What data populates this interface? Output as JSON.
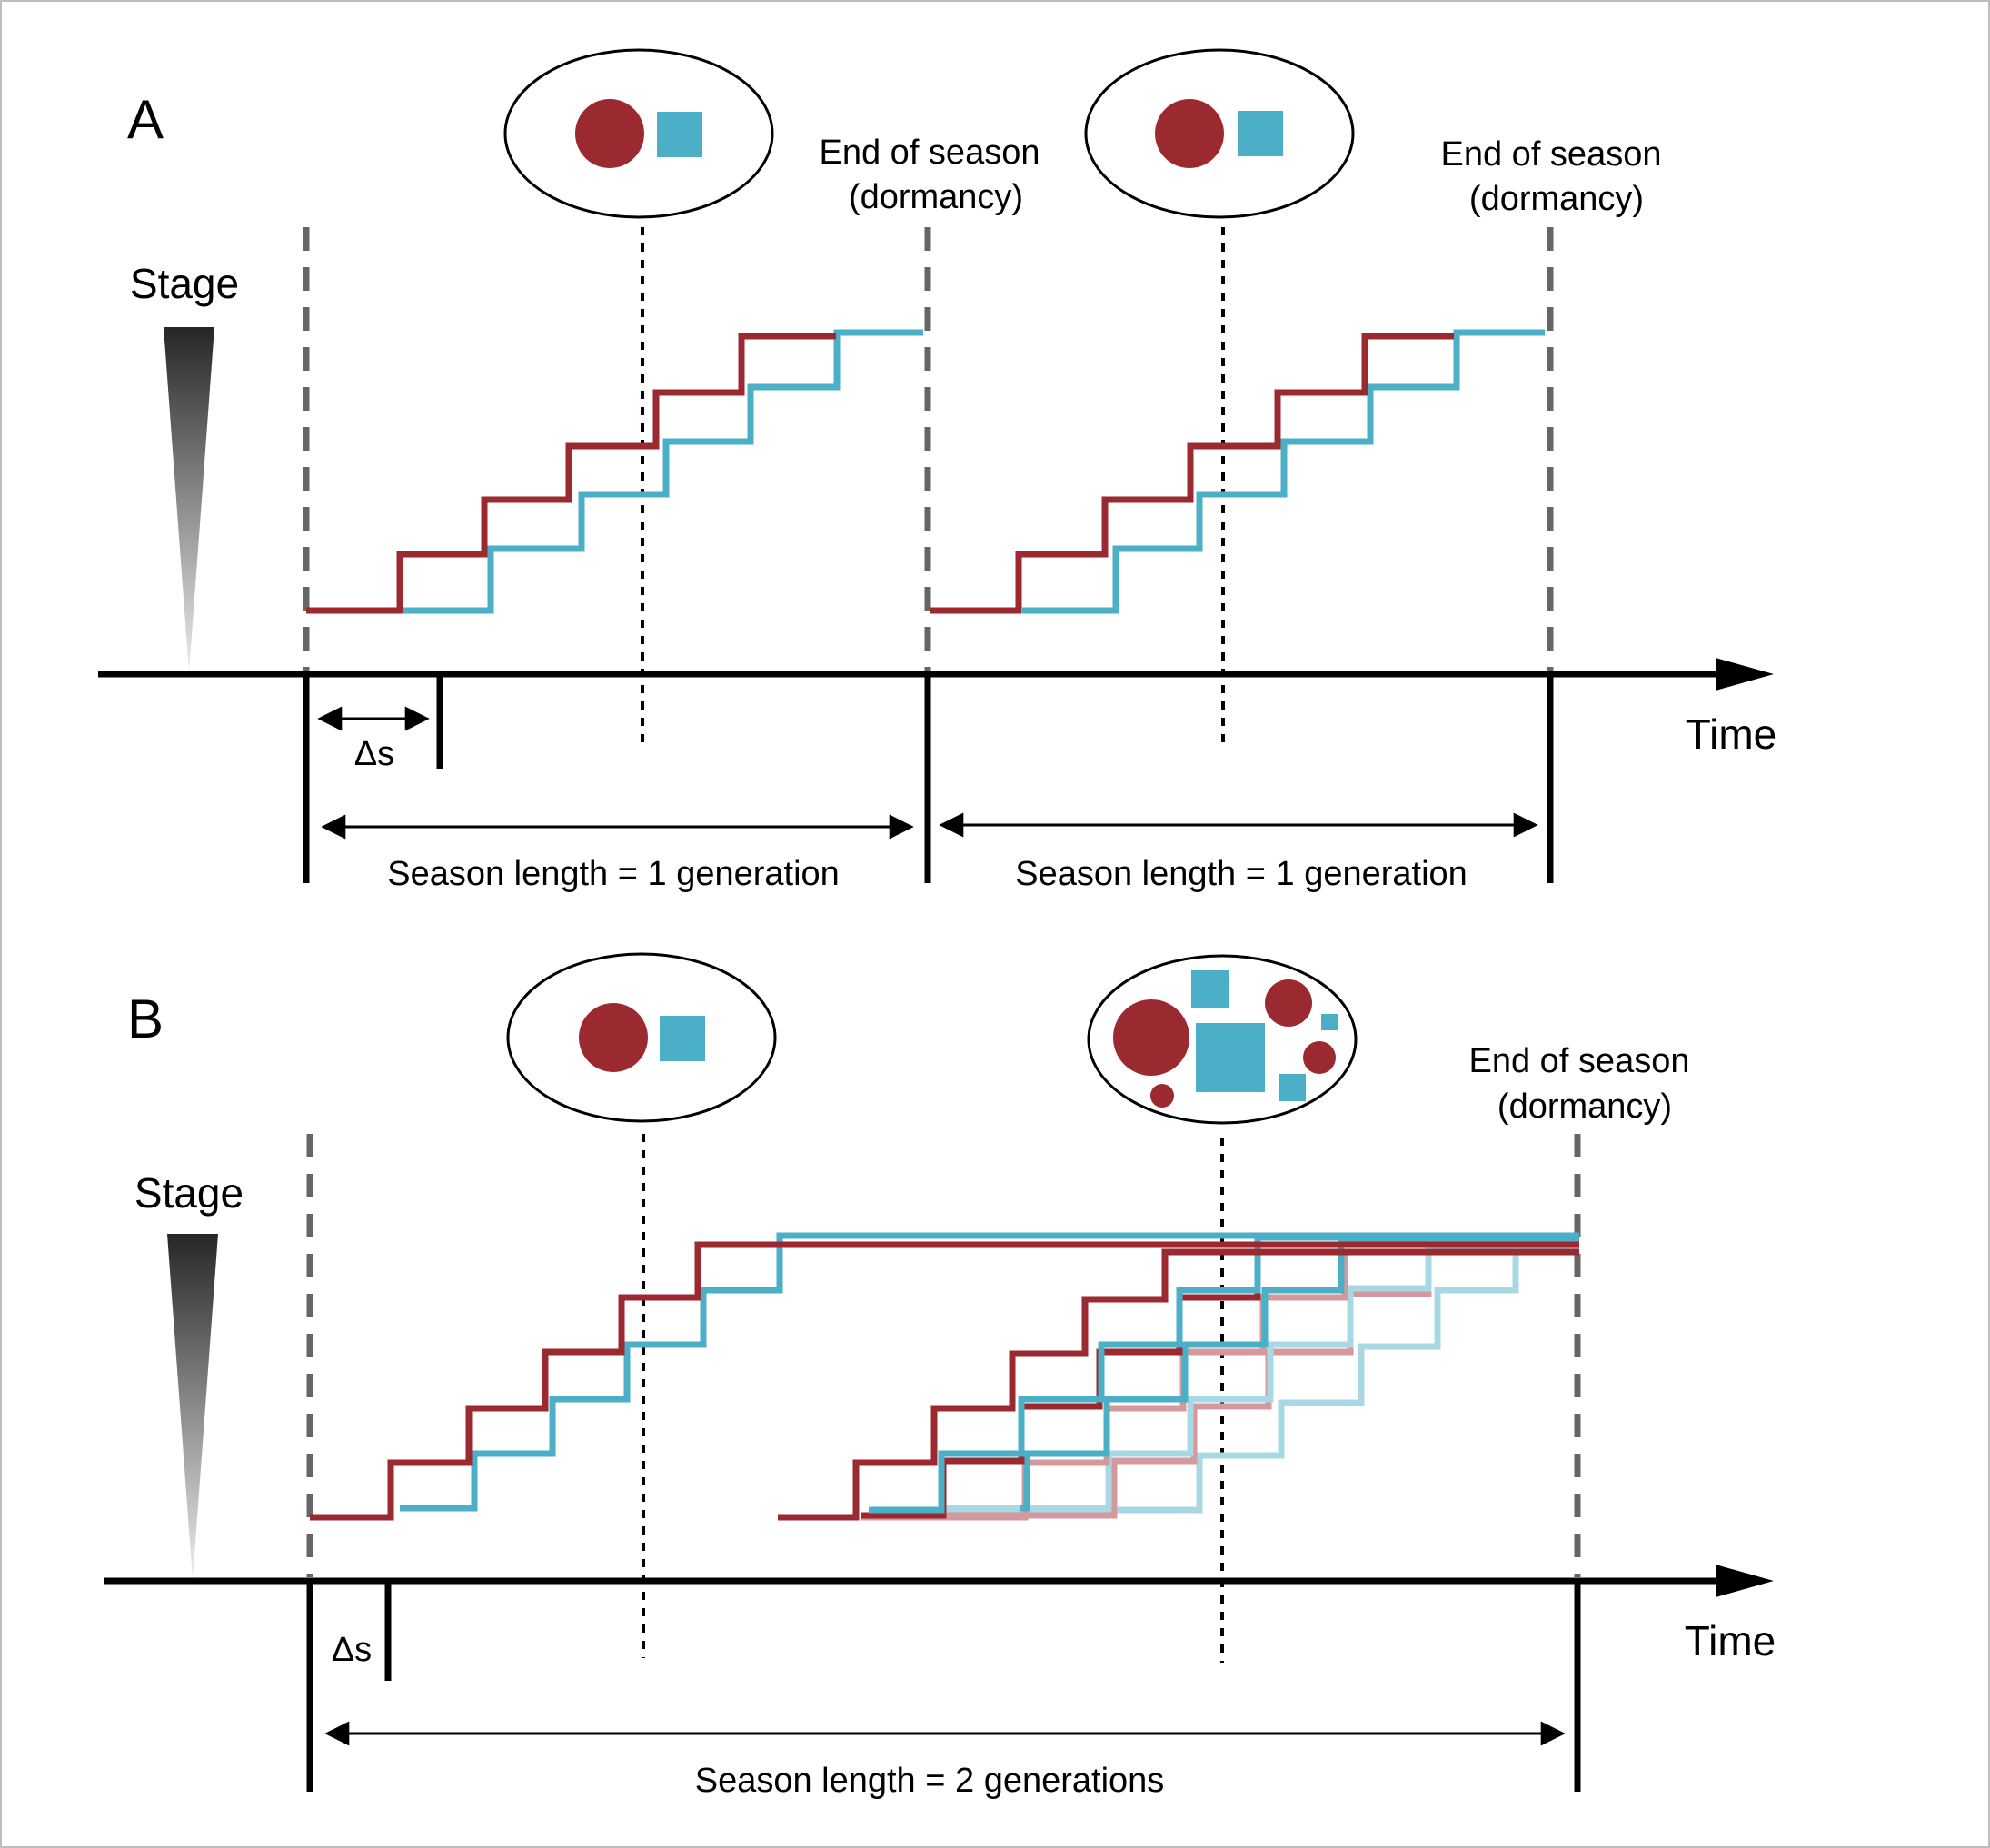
{
  "colors": {
    "red": "#9b2a30",
    "blue": "#4bafc7",
    "red_faded": "#d4999c",
    "blue_faded": "#a9d8e5",
    "dashed": "#666666",
    "axis": "#000000"
  },
  "panel_a": {
    "letter": "A",
    "stage_label": "Stage",
    "time_label": "Time",
    "delta_label": "Δs",
    "seasons": [
      {
        "end_line1": "End of season",
        "end_line2": "(dormancy)",
        "length_label": "Season length = 1 generation"
      },
      {
        "end_line1": "End of season",
        "end_line2": "(dormancy)",
        "length_label": "Season length = 1 generation"
      }
    ]
  },
  "panel_b": {
    "letter": "B",
    "stage_label": "Stage",
    "time_label": "Time",
    "delta_label": "Δs",
    "end_line1": "End of season",
    "end_line2": "(dormancy)",
    "length_label": "Season length = 2 generations"
  }
}
